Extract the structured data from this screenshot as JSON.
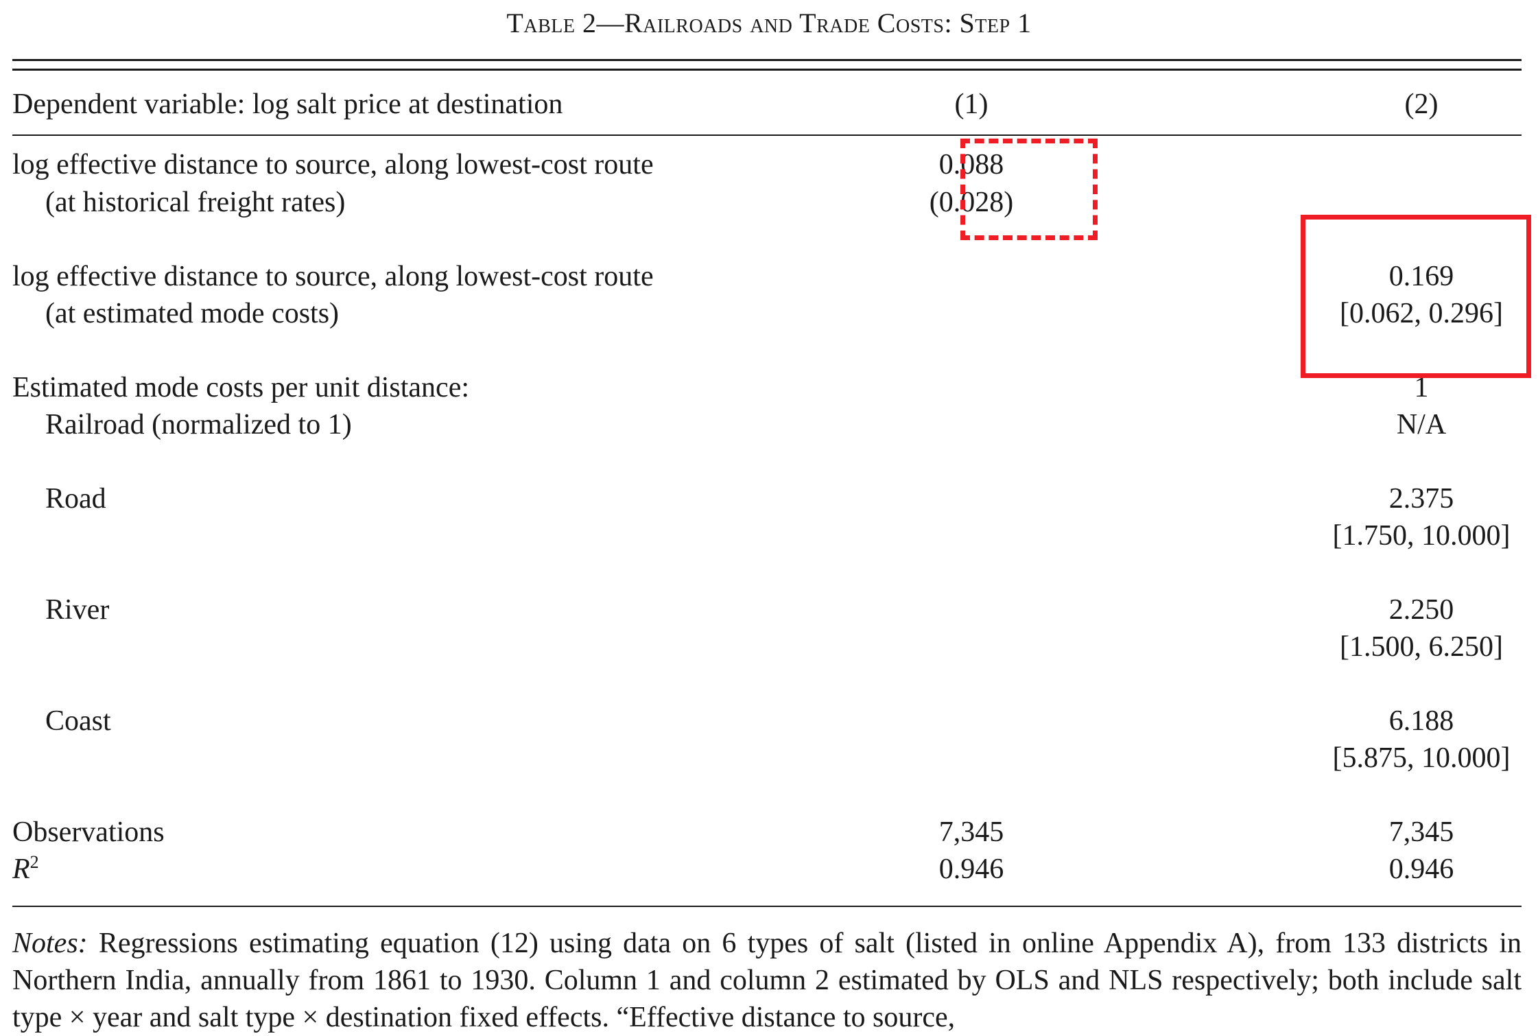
{
  "title": "Table 2—Railroads and Trade Costs: Step 1",
  "header": {
    "dependent_variable": "Dependent variable: log salt price at destination",
    "col1": "(1)",
    "col2": "(2)"
  },
  "rows": {
    "historical": {
      "label": "log effective distance to source, along lowest-cost route",
      "sublabel": "(at historical freight rates)",
      "col1_value": "0.088",
      "col1_se": "(0.028)"
    },
    "estimated": {
      "label": "log effective distance to source, along lowest-cost route",
      "sublabel": "(at estimated mode costs)",
      "col2_value": "0.169",
      "col2_ci": "[0.062, 0.296]"
    },
    "mode_costs_heading": "Estimated mode costs per unit distance:",
    "railroad": {
      "label": "Railroad (normalized to 1)",
      "col2_value": "1",
      "col2_ci": "N/A"
    },
    "road": {
      "label": "Road",
      "col2_value": "2.375",
      "col2_ci": "[1.750, 10.000]"
    },
    "river": {
      "label": "River",
      "col2_value": "2.250",
      "col2_ci": "[1.500, 6.250]"
    },
    "coast": {
      "label": "Coast",
      "col2_value": "6.188",
      "col2_ci": "[5.875, 10.000]"
    },
    "observations": {
      "label": "Observations",
      "col1": "7,345",
      "col2": "7,345"
    },
    "r2": {
      "label_base": "R",
      "label_sup": "2",
      "col1": "0.946",
      "col2": "0.946"
    }
  },
  "notes": {
    "label": "Notes:",
    "text": "Regressions estimating equation (12) using data on 6 types of salt (listed in online Appendix A), from 133 districts in Northern India, annually from 1861 to 1930. Column 1 and column 2 estimated by OLS and NLS respectively; both include salt type × year and salt type × destination fixed effects. “Effective distance to source,"
  },
  "highlight_color": "#ee1c25"
}
